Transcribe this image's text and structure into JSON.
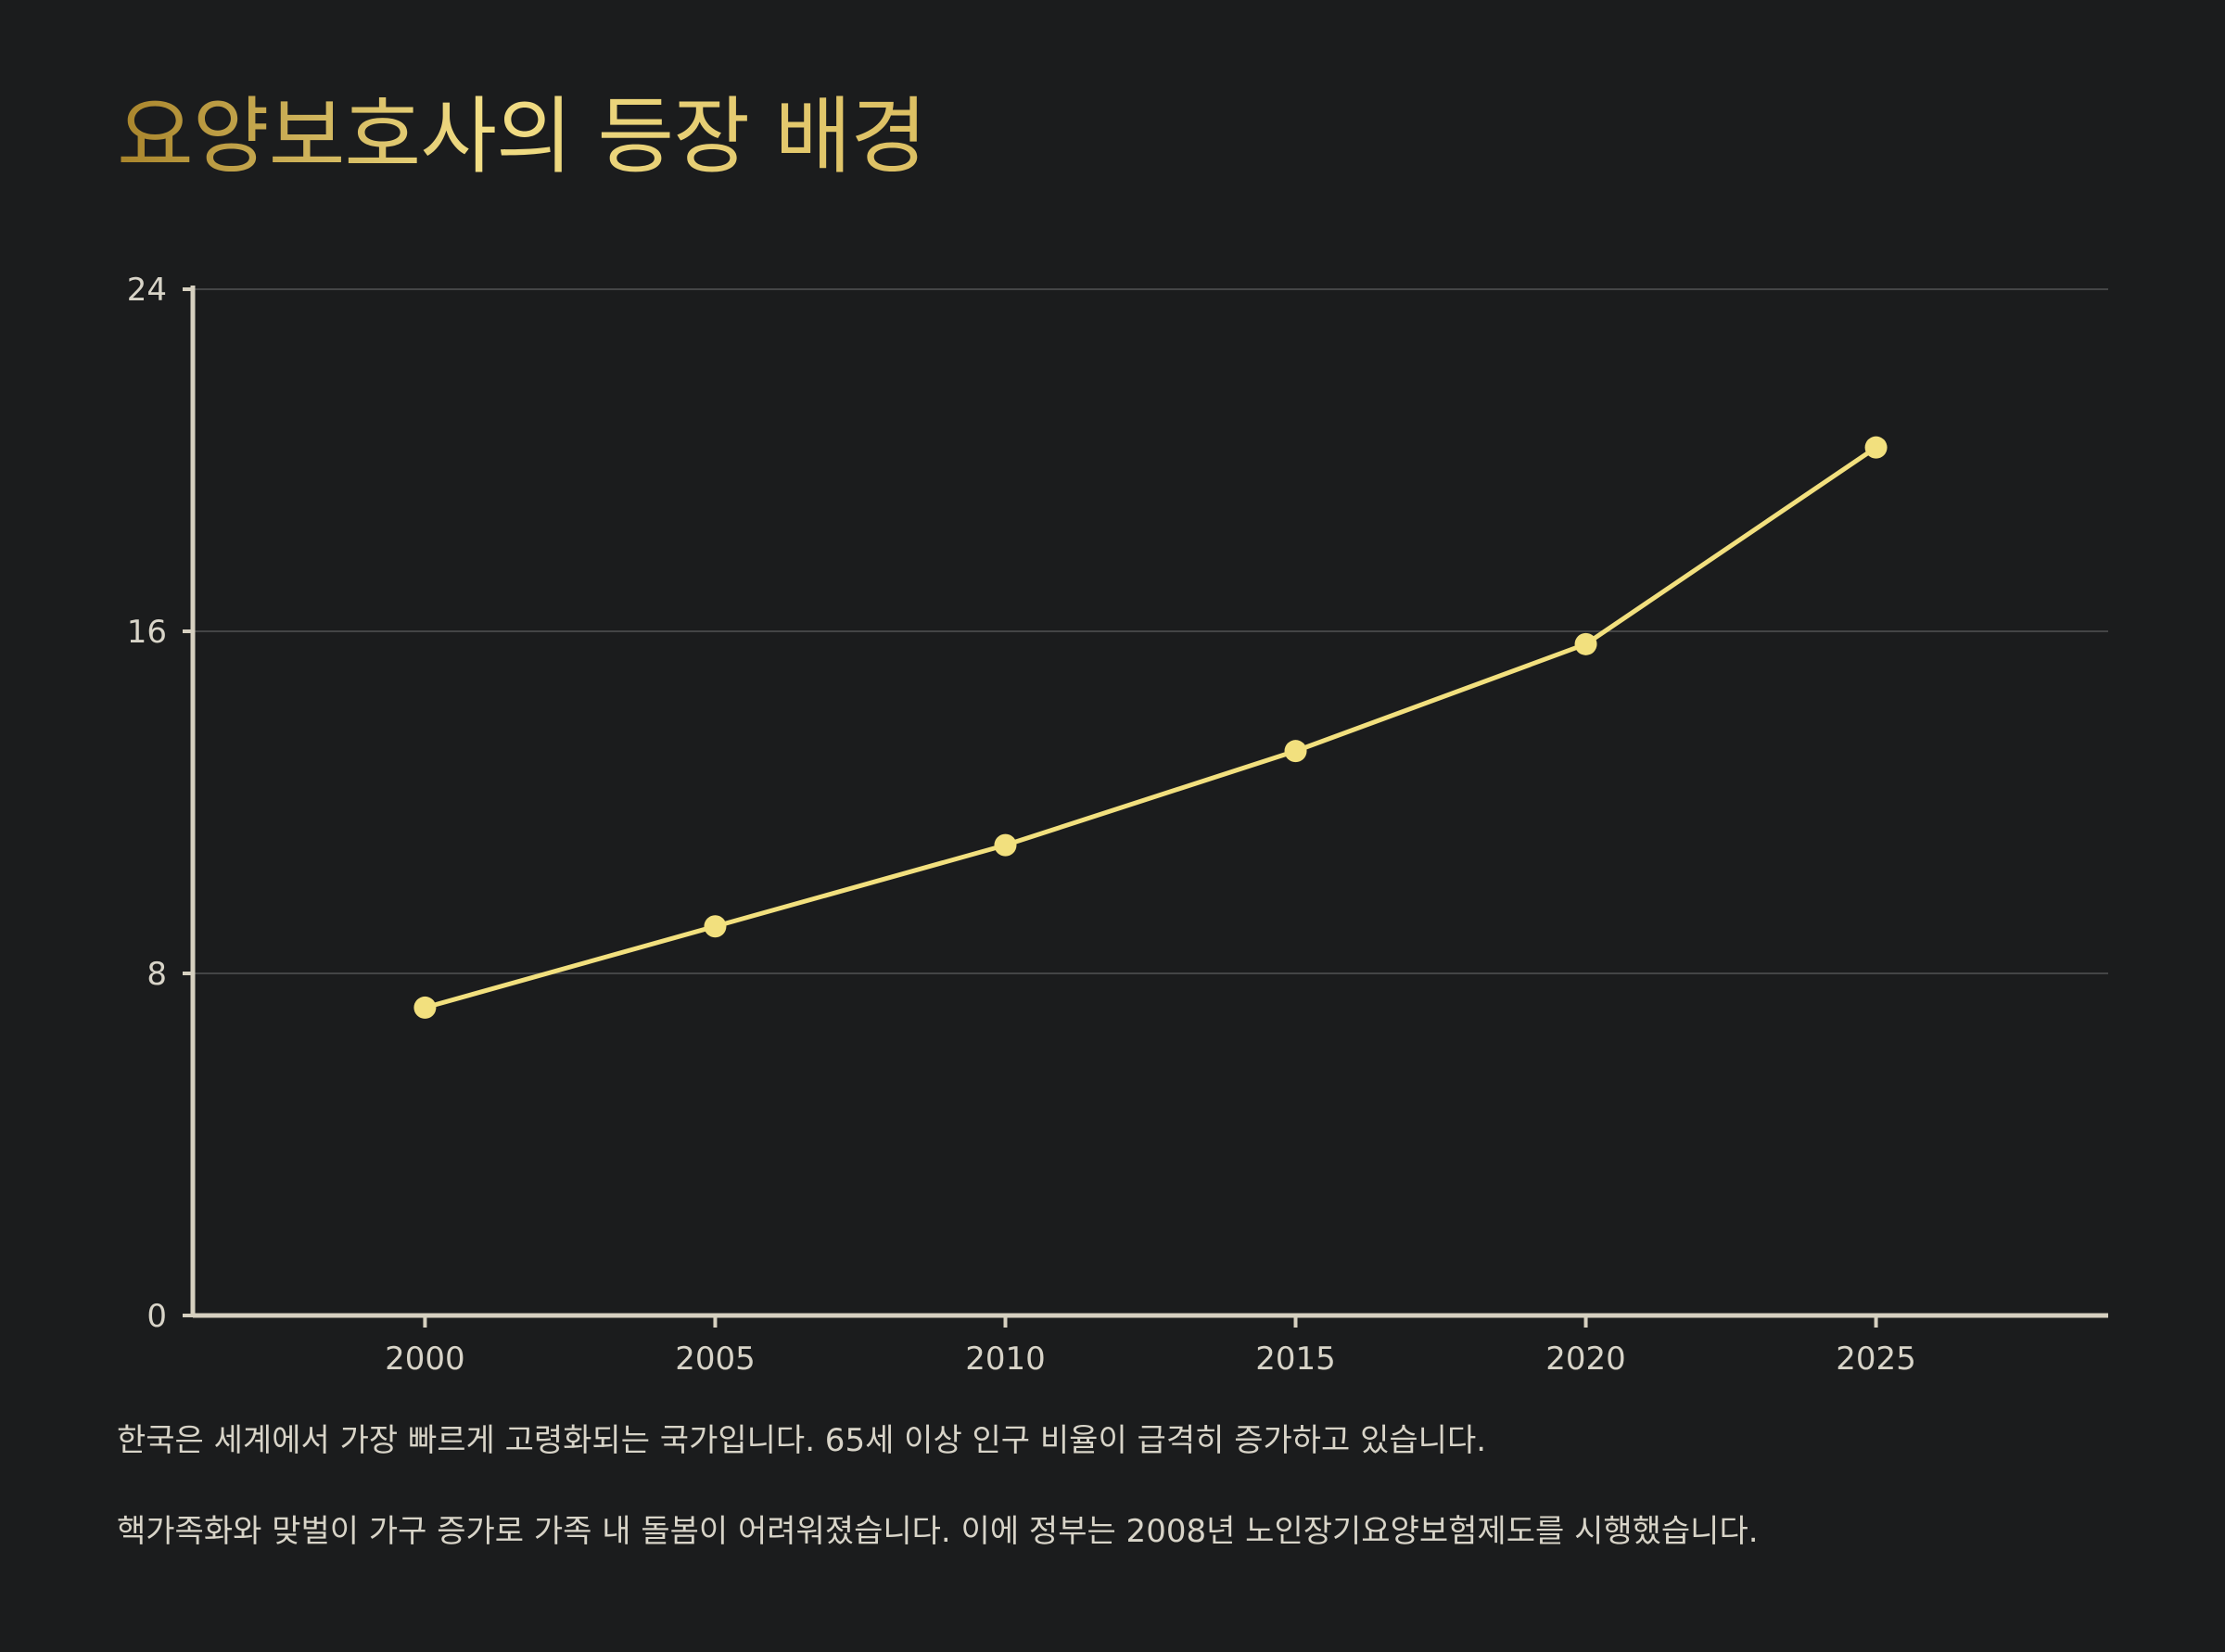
{
  "title": "요양보호사의 등장 배경",
  "captions": [
    "한국은 세계에서 가장 빠르게 고령화되는 국가입니다. 65세 이상 인구 비율이 급격히 증가하고 있습니다.",
    "핵가족화와 맞벌이 가구 증가로 가족 내 돌봄이 어려워졌습니다. 이에 정부는 2008년 노인장기요양보험제도를 시행했습니다."
  ],
  "colors": {
    "background": "#1b1c1d",
    "line": "#f2e07e",
    "axis": "#d6d0c0",
    "grid": "#444546",
    "text": "#d8d4c8"
  },
  "chart_data": {
    "type": "line",
    "title": "",
    "xlabel": "",
    "ylabel": "",
    "x": [
      2000,
      2005,
      2010,
      2015,
      2020,
      2025
    ],
    "series": [
      {
        "values": [
          7.2,
          9.1,
          11.0,
          13.2,
          15.7,
          20.3
        ]
      }
    ],
    "xlim": [
      1996,
      2029
    ],
    "ylim": [
      0,
      24
    ],
    "xticks": [
      "2000",
      "2005",
      "2010",
      "2015",
      "2020",
      "2025"
    ],
    "yticks": [
      "0",
      "8",
      "16",
      "24"
    ],
    "grid": "horizontal",
    "legend": "none"
  }
}
